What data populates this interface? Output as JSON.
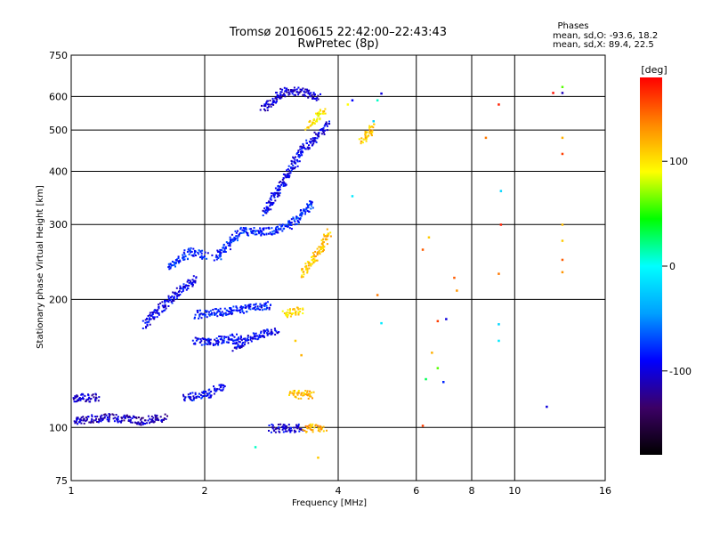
{
  "chart_data": {
    "type": "scatter",
    "title": "Tromsø 20160615 22:42:00–22:43:43",
    "subtitle": "RwPretec (8p)",
    "xlabel": "Frequency [MHz]",
    "ylabel": "Stationary phase Virtual Height [km]",
    "x_scale": "log",
    "y_scale": "log",
    "xlim": [
      1,
      16
    ],
    "ylim": [
      75,
      750
    ],
    "x_ticks": [
      1,
      2,
      4,
      6,
      8,
      10,
      16
    ],
    "y_ticks": [
      75,
      100,
      200,
      300,
      400,
      500,
      600,
      750
    ],
    "grid": true,
    "phase_header": {
      "title": "Phases",
      "o_line": "mean, sd,O: -93.6, 18.2",
      "x_line": "mean, sd,X:  89.4, 22.5"
    },
    "colorbar": {
      "label": "[deg]",
      "range": [
        -180,
        180
      ],
      "ticks": [
        100,
        0,
        -100
      ],
      "colors": [
        "#000000",
        "#3c0066",
        "#0000ff",
        "#00a0ff",
        "#00ffff",
        "#00ff00",
        "#ffff00",
        "#ff8800",
        "#ff0000"
      ]
    },
    "trace_segments": [
      {
        "x": [
          1.0,
          1.2,
          1.45,
          1.62
        ],
        "y": [
          104,
          106,
          104,
          106
        ],
        "phase": -110
      },
      {
        "x": [
          1.0,
          1.15
        ],
        "y": [
          118,
          118
        ],
        "phase": -105
      },
      {
        "x": [
          1.45,
          1.7,
          1.9
        ],
        "y": [
          175,
          205,
          225
        ],
        "phase": -95
      },
      {
        "x": [
          1.65,
          1.85,
          2.0
        ],
        "y": [
          240,
          260,
          255
        ],
        "phase": -80
      },
      {
        "x": [
          1.9,
          2.1,
          2.4
        ],
        "y": [
          160,
          160,
          165
        ],
        "phase": -90
      },
      {
        "x": [
          2.3,
          2.6,
          2.9
        ],
        "y": [
          155,
          165,
          170
        ],
        "phase": -95
      },
      {
        "x": [
          1.8,
          2.0,
          2.2
        ],
        "y": [
          118,
          120,
          125
        ],
        "phase": -90
      },
      {
        "x": [
          1.9,
          2.4,
          2.8
        ],
        "y": [
          185,
          190,
          195
        ],
        "phase": -85
      },
      {
        "x": [
          2.1,
          2.4,
          2.8,
          3.1,
          3.5
        ],
        "y": [
          250,
          290,
          290,
          300,
          340
        ],
        "phase": -80
      },
      {
        "x": [
          2.7,
          3.0,
          3.3,
          3.8
        ],
        "y": [
          320,
          380,
          450,
          520
        ],
        "phase": -95
      },
      {
        "x": [
          2.7,
          3.0,
          3.3,
          3.6
        ],
        "y": [
          560,
          620,
          620,
          600
        ],
        "phase": -105
      },
      {
        "x": [
          2.8,
          3.0,
          3.3
        ],
        "y": [
          100,
          100,
          100
        ],
        "phase": -100
      },
      {
        "x": [
          3.0,
          3.3
        ],
        "y": [
          185,
          190
        ],
        "phase": 105
      },
      {
        "x": [
          3.1,
          3.5
        ],
        "y": [
          120,
          120
        ],
        "phase": 115
      },
      {
        "x": [
          3.35,
          3.7
        ],
        "y": [
          100,
          100
        ],
        "phase": 120
      },
      {
        "x": [
          3.3,
          3.6,
          3.8
        ],
        "y": [
          230,
          260,
          290
        ],
        "phase": 110
      },
      {
        "x": [
          3.4,
          3.7
        ],
        "y": [
          510,
          560
        ],
        "phase": 100
      },
      {
        "x": [
          4.5,
          4.8
        ],
        "y": [
          470,
          510
        ],
        "phase": 110
      }
    ],
    "isolated_points": [
      {
        "x": 9.2,
        "y": 575,
        "phase": 170
      },
      {
        "x": 8.6,
        "y": 480,
        "phase": 140
      },
      {
        "x": 12.2,
        "y": 612,
        "phase": 175
      },
      {
        "x": 12.8,
        "y": 632,
        "phase": 60
      },
      {
        "x": 12.8,
        "y": 612,
        "phase": -110
      },
      {
        "x": 12.8,
        "y": 480,
        "phase": 120
      },
      {
        "x": 12.8,
        "y": 440,
        "phase": 160
      },
      {
        "x": 12.8,
        "y": 300,
        "phase": 115
      },
      {
        "x": 12.8,
        "y": 275,
        "phase": 110
      },
      {
        "x": 12.8,
        "y": 248,
        "phase": 150
      },
      {
        "x": 12.8,
        "y": 232,
        "phase": 130
      },
      {
        "x": 9.3,
        "y": 360,
        "phase": -20
      },
      {
        "x": 9.3,
        "y": 300,
        "phase": 170
      },
      {
        "x": 9.2,
        "y": 230,
        "phase": 140
      },
      {
        "x": 9.2,
        "y": 175,
        "phase": -20
      },
      {
        "x": 9.2,
        "y": 160,
        "phase": -10
      },
      {
        "x": 11.8,
        "y": 112,
        "phase": -100
      },
      {
        "x": 6.4,
        "y": 280,
        "phase": 110
      },
      {
        "x": 6.2,
        "y": 262,
        "phase": 150
      },
      {
        "x": 7.3,
        "y": 225,
        "phase": 150
      },
      {
        "x": 7.4,
        "y": 210,
        "phase": 130
      },
      {
        "x": 6.7,
        "y": 178,
        "phase": 160
      },
      {
        "x": 7.0,
        "y": 180,
        "phase": -100
      },
      {
        "x": 6.5,
        "y": 150,
        "phase": 120
      },
      {
        "x": 6.7,
        "y": 138,
        "phase": 60
      },
      {
        "x": 6.3,
        "y": 130,
        "phase": 30
      },
      {
        "x": 6.2,
        "y": 101,
        "phase": 160
      },
      {
        "x": 6.9,
        "y": 128,
        "phase": -80
      },
      {
        "x": 5.0,
        "y": 176,
        "phase": -10
      },
      {
        "x": 4.9,
        "y": 205,
        "phase": 140
      },
      {
        "x": 4.3,
        "y": 350,
        "phase": -10
      },
      {
        "x": 5.0,
        "y": 610,
        "phase": -100
      },
      {
        "x": 4.8,
        "y": 525,
        "phase": -20
      },
      {
        "x": 4.3,
        "y": 588,
        "phase": -90
      },
      {
        "x": 4.2,
        "y": 575,
        "phase": 90
      },
      {
        "x": 4.9,
        "y": 588,
        "phase": 10
      },
      {
        "x": 4.6,
        "y": 490,
        "phase": 110
      },
      {
        "x": 3.2,
        "y": 160,
        "phase": 110
      },
      {
        "x": 3.3,
        "y": 148,
        "phase": 120
      },
      {
        "x": 2.6,
        "y": 90,
        "phase": 10
      },
      {
        "x": 3.6,
        "y": 85,
        "phase": 110
      }
    ]
  }
}
